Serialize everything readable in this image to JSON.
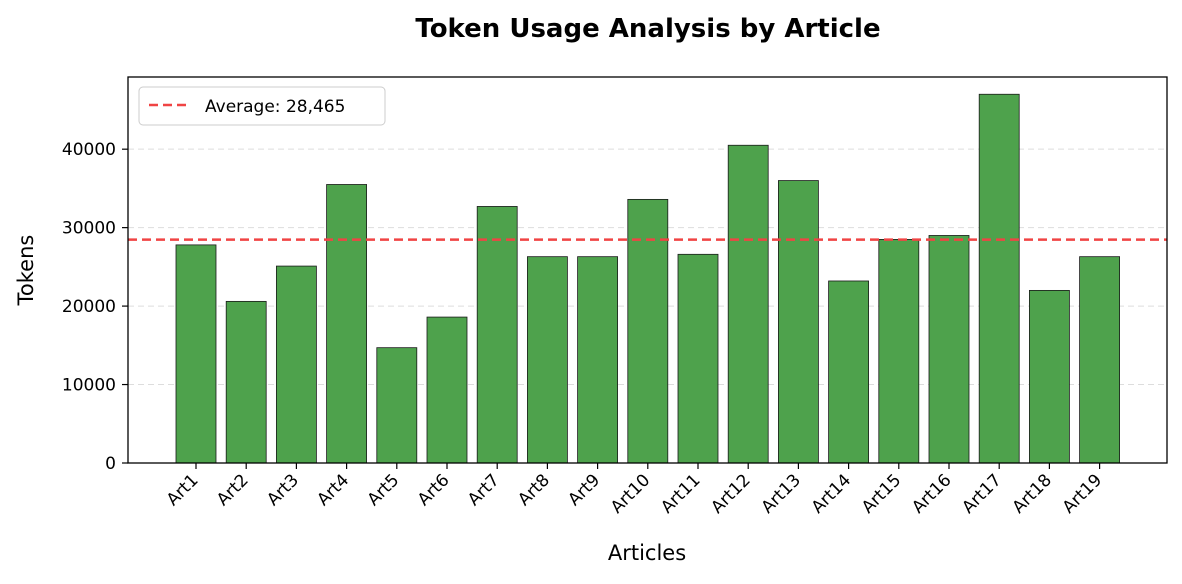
{
  "chart_data": {
    "type": "bar",
    "title": "Token Usage Analysis by Article",
    "xlabel": "Articles",
    "ylabel": "Tokens",
    "categories": [
      "Art1",
      "Art2",
      "Art3",
      "Art4",
      "Art5",
      "Art6",
      "Art7",
      "Art8",
      "Art9",
      "Art10",
      "Art11",
      "Art12",
      "Art13",
      "Art14",
      "Art15",
      "Art16",
      "Art17",
      "Art18",
      "Art19"
    ],
    "values": [
      27800,
      20600,
      25100,
      35500,
      14700,
      18600,
      32700,
      26300,
      26300,
      33600,
      26600,
      40500,
      36000,
      23200,
      28500,
      29000,
      47000,
      22000,
      26300
    ],
    "yticks": [
      0,
      10000,
      20000,
      30000,
      40000
    ],
    "ylim": [
      0,
      49200
    ],
    "average": {
      "value": 28465,
      "label": "Average: 28,465"
    },
    "grid": true,
    "legend_position": "top-left",
    "colors": {
      "bar": "#4ea24c",
      "bar_edge": "#1a1a1a",
      "average_line": "#f04444",
      "grid": "#dddddd"
    }
  }
}
